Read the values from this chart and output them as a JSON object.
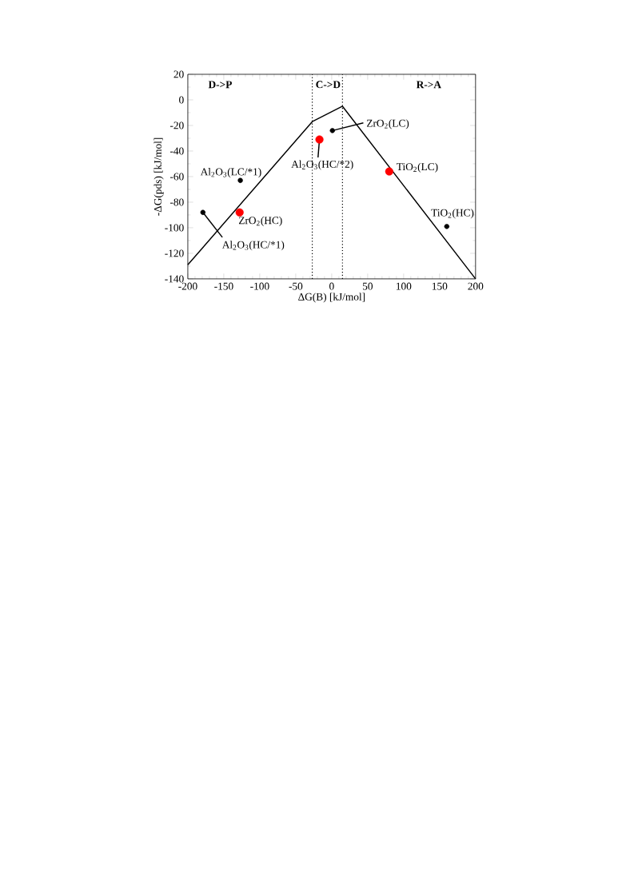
{
  "chart_data": {
    "type": "scatter",
    "xlabel": "ΔG(B) [kJ/mol]",
    "ylabel": "-ΔG(pds) [kJ/mol]",
    "xlim": [
      -200,
      200
    ],
    "ylim": [
      -140,
      20
    ],
    "xticks": [
      -200,
      -150,
      -100,
      -50,
      0,
      50,
      100,
      150,
      200
    ],
    "yticks": [
      -140,
      -120,
      -100,
      -80,
      -60,
      -40,
      -20,
      0,
      20
    ],
    "grid": false,
    "marker": "circle",
    "series": [
      {
        "type": "line",
        "color": "#000000",
        "x": [
          -200,
          -27,
          15,
          200
        ],
        "values": [
          -129,
          -17,
          -5,
          -140
        ],
        "marker": "none",
        "line_style": "solid"
      },
      {
        "color": "#000000",
        "x": [
          -127,
          -179,
          1,
          160
        ],
        "values": [
          -63,
          -88,
          -24,
          -99
        ]
      },
      {
        "color": "#ff0000",
        "x": [
          -128,
          -17,
          80
        ],
        "values": [
          -88,
          -31,
          -56
        ]
      }
    ],
    "ref_lines": [
      {
        "axis": "x",
        "value": -27,
        "line_style": "dotted",
        "color": "#000000"
      },
      {
        "axis": "x",
        "value": 15,
        "line_style": "dotted",
        "color": "#000000"
      }
    ],
    "annotations": [
      "D->P",
      "C->D",
      "R->A",
      {
        "text": "Al$_{2}$O$_{3}$(LC/*1)",
        "x": -127,
        "y": -63
      },
      {
        "text": "Al$_{2}$O$_{3}$(HC/*1)",
        "x": -179,
        "y": -88
      },
      {
        "text": "ZrO$_{2}$(LC)",
        "x": 1,
        "y": -24
      },
      {
        "text": "TiO$_{2}$(HC)",
        "x": 160,
        "y": -99
      },
      {
        "text": "ZrO$_{2}$(HC)",
        "x": -128,
        "y": -88
      },
      {
        "text": "Al$_{2}$O$_{3}$(HC/*2)",
        "x": -17,
        "y": -31
      },
      {
        "text": "TiO$_{2}$(LC)",
        "x": 80,
        "y": -56
      }
    ]
  }
}
